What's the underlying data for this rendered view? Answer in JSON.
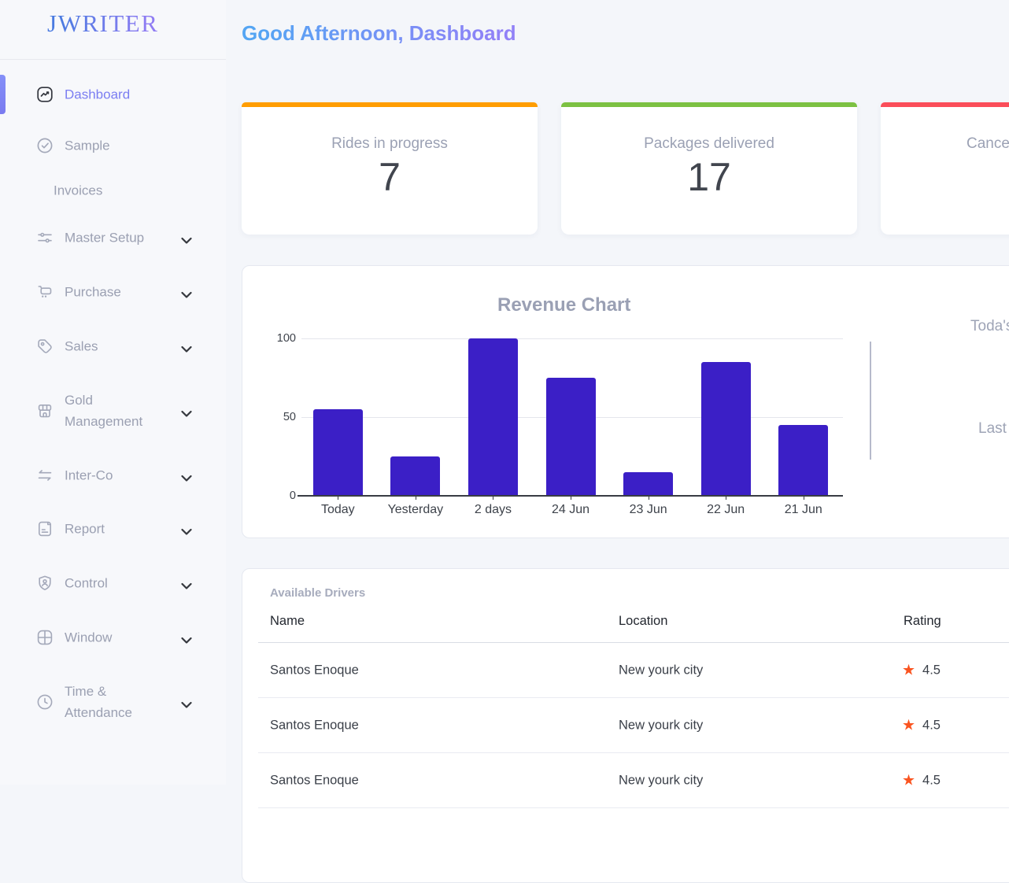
{
  "sidebar": {
    "logo": "JWRITER",
    "active_color": "#7B7EF2",
    "items": [
      {
        "label": "Dashboard",
        "icon": "trend-chart-icon",
        "active": true,
        "chevron": false
      },
      {
        "label": "Sample",
        "icon": "check-circle-icon",
        "active": false,
        "chevron": false
      },
      {
        "label": "Invoices",
        "icon": null,
        "active": false,
        "chevron": false
      },
      {
        "label": "Master Setup",
        "icon": "sliders-icon",
        "active": false,
        "chevron": true
      },
      {
        "label": "Purchase",
        "icon": "cart-icon",
        "active": false,
        "chevron": true
      },
      {
        "label": "Sales",
        "icon": "tag-icon",
        "active": false,
        "chevron": true
      },
      {
        "label": "Gold Management",
        "icon": "storefront-icon",
        "active": false,
        "chevron": true
      },
      {
        "label": "Inter-Co",
        "icon": "transfer-arrows-icon",
        "active": false,
        "chevron": true
      },
      {
        "label": "Report",
        "icon": "report-document-icon",
        "active": false,
        "chevron": true
      },
      {
        "label": "Control",
        "icon": "shield-user-icon",
        "active": false,
        "chevron": true
      },
      {
        "label": "Window",
        "icon": "window-grid-icon",
        "active": false,
        "chevron": true
      },
      {
        "label": "Time & Attendance",
        "icon": "clock-icon",
        "active": false,
        "chevron": true
      }
    ]
  },
  "header": {
    "greeting": "Good Afternoon, Dashboard"
  },
  "stat_cards": [
    {
      "label": "Rides in progress",
      "value": "7",
      "accent_color": "#FF9D00"
    },
    {
      "label": "Packages delivered",
      "value": "17",
      "accent_color": "#7CC142"
    },
    {
      "label": "Cance",
      "accent_color": "#FB4D59"
    }
  ],
  "chart_data": {
    "type": "bar",
    "title": "Revenue Chart",
    "categories": [
      "Today",
      "Yesterday",
      "2 days",
      "24 Jun",
      "23 Jun",
      "22 Jun",
      "21 Jun"
    ],
    "values": [
      55,
      25,
      100,
      75,
      15,
      85,
      45
    ],
    "yticks": [
      0,
      50,
      100
    ],
    "ylim": [
      0,
      100
    ],
    "xlabel": "",
    "ylabel": "",
    "grid": true,
    "legend": false,
    "bar_color": "#3B1FC6",
    "side_labels": [
      "Toda's",
      "Last"
    ]
  },
  "drivers_table": {
    "title": "Available Drivers",
    "columns": [
      "Name",
      "Location",
      "Rating"
    ],
    "star_color": "#FA5420",
    "star_icon": "star-icon",
    "rows": [
      {
        "name": "Santos Enoque",
        "location": "New yourk city",
        "rating": "4.5"
      },
      {
        "name": "Santos Enoque",
        "location": "New yourk city",
        "rating": "4.5"
      },
      {
        "name": "Santos Enoque",
        "location": "New yourk city",
        "rating": "4.5"
      }
    ]
  }
}
